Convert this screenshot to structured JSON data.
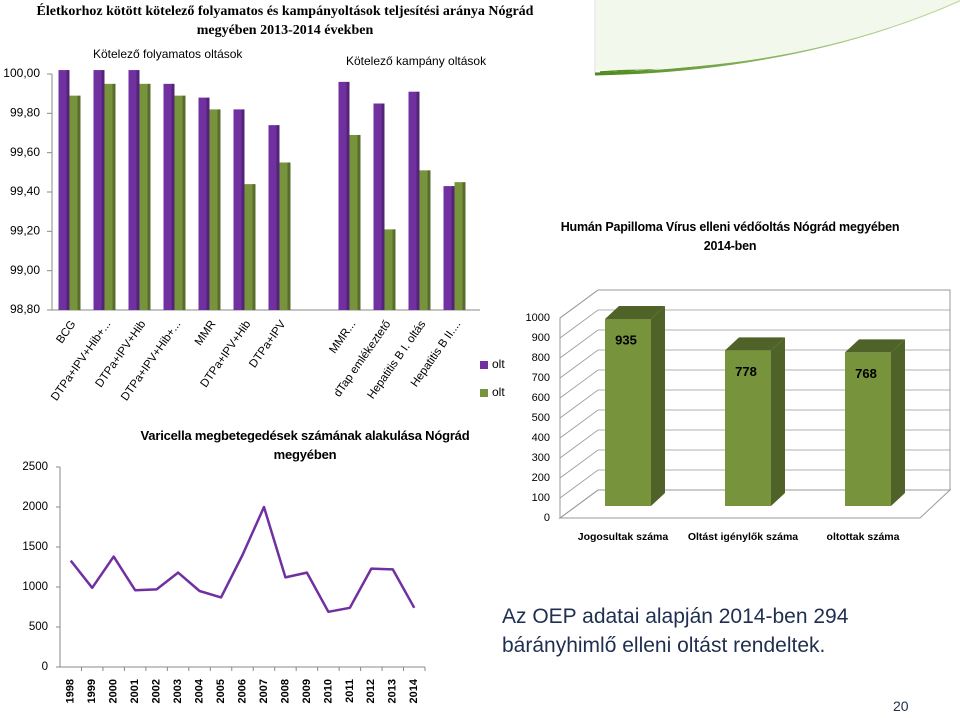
{
  "chart_data": [
    {
      "type": "bar",
      "title": "Életkorhoz kötött kötelező folyamatos és kampányoltások teljesítési aránya Nógrád megyében 2013-2014 években",
      "annotations": [
        "Kötelező folyamatos oltások",
        "Kötelező kampány oltások"
      ],
      "categories": [
        "BCG",
        "DTPa+IPV+Hib+...",
        "DTPa+IPV+Hib",
        "DTPa+IPV+Hib+...",
        "MMR",
        "DTPa+IPV+Hib",
        "DTPa+IPV",
        null,
        "MMR...",
        "dTap emlékeztető",
        "Hepatitis B I. oltás",
        "Hepatitis B II...."
      ],
      "series": [
        {
          "name": "olt",
          "color": "#7030a0",
          "values": [
            100.02,
            100.02,
            100.02,
            99.95,
            99.88,
            99.82,
            99.74,
            null,
            99.96,
            99.85,
            99.91,
            99.43
          ]
        },
        {
          "name": "olt",
          "color": "#77933c",
          "values": [
            99.89,
            99.95,
            99.95,
            99.89,
            99.82,
            99.44,
            99.55,
            null,
            99.69,
            99.21,
            99.51,
            99.45
          ]
        }
      ],
      "ylim": [
        98.8,
        100
      ],
      "yticks": [
        {
          "value": 98.8,
          "label": "98,80"
        },
        {
          "value": 99,
          "label": "99,00"
        },
        {
          "value": 99.2,
          "label": "99,20"
        },
        {
          "value": 99.4,
          "label": "99,40"
        },
        {
          "value": 99.6,
          "label": "99,60"
        },
        {
          "value": 99.8,
          "label": "99,80"
        },
        {
          "value": 100,
          "label": "100,00"
        }
      ],
      "legend": "right"
    },
    {
      "type": "bar",
      "three_d": true,
      "title": "Humán Papilloma Vírus elleni védőoltás Nógrád megyében 2014-ben",
      "categories": [
        "Jogosultak száma",
        "Oltást igénylők száma",
        "oltottak száma"
      ],
      "values": [
        935,
        778,
        768
      ],
      "color": "#77933c",
      "ylim": [
        0,
        1000
      ],
      "yticks": [
        0,
        100,
        200,
        300,
        400,
        500,
        600,
        700,
        800,
        900,
        1000
      ],
      "grid": true
    },
    {
      "type": "line",
      "title": "Varicella megbetegedések számának alakulása Nógrád megyében",
      "categories": [
        "1998",
        "1999",
        "2000",
        "2001",
        "2002",
        "2003",
        "2004",
        "2005",
        "2006",
        "2007",
        "2008",
        "2009",
        "2010",
        "2011",
        "2012",
        "2013",
        "2014"
      ],
      "values": [
        1330,
        990,
        1380,
        960,
        970,
        1180,
        950,
        870,
        1400,
        2000,
        1120,
        1180,
        690,
        740,
        1230,
        1220,
        740
      ],
      "color": "#7030a0",
      "ylim": [
        0,
        2500
      ],
      "yticks": [
        0,
        500,
        1000,
        1500,
        2000,
        2500
      ]
    }
  ],
  "note": "Az OEP adatai alapján 2014-ben  294 bárányhimlő elleni oltást rendeltek.",
  "page_number": "20"
}
